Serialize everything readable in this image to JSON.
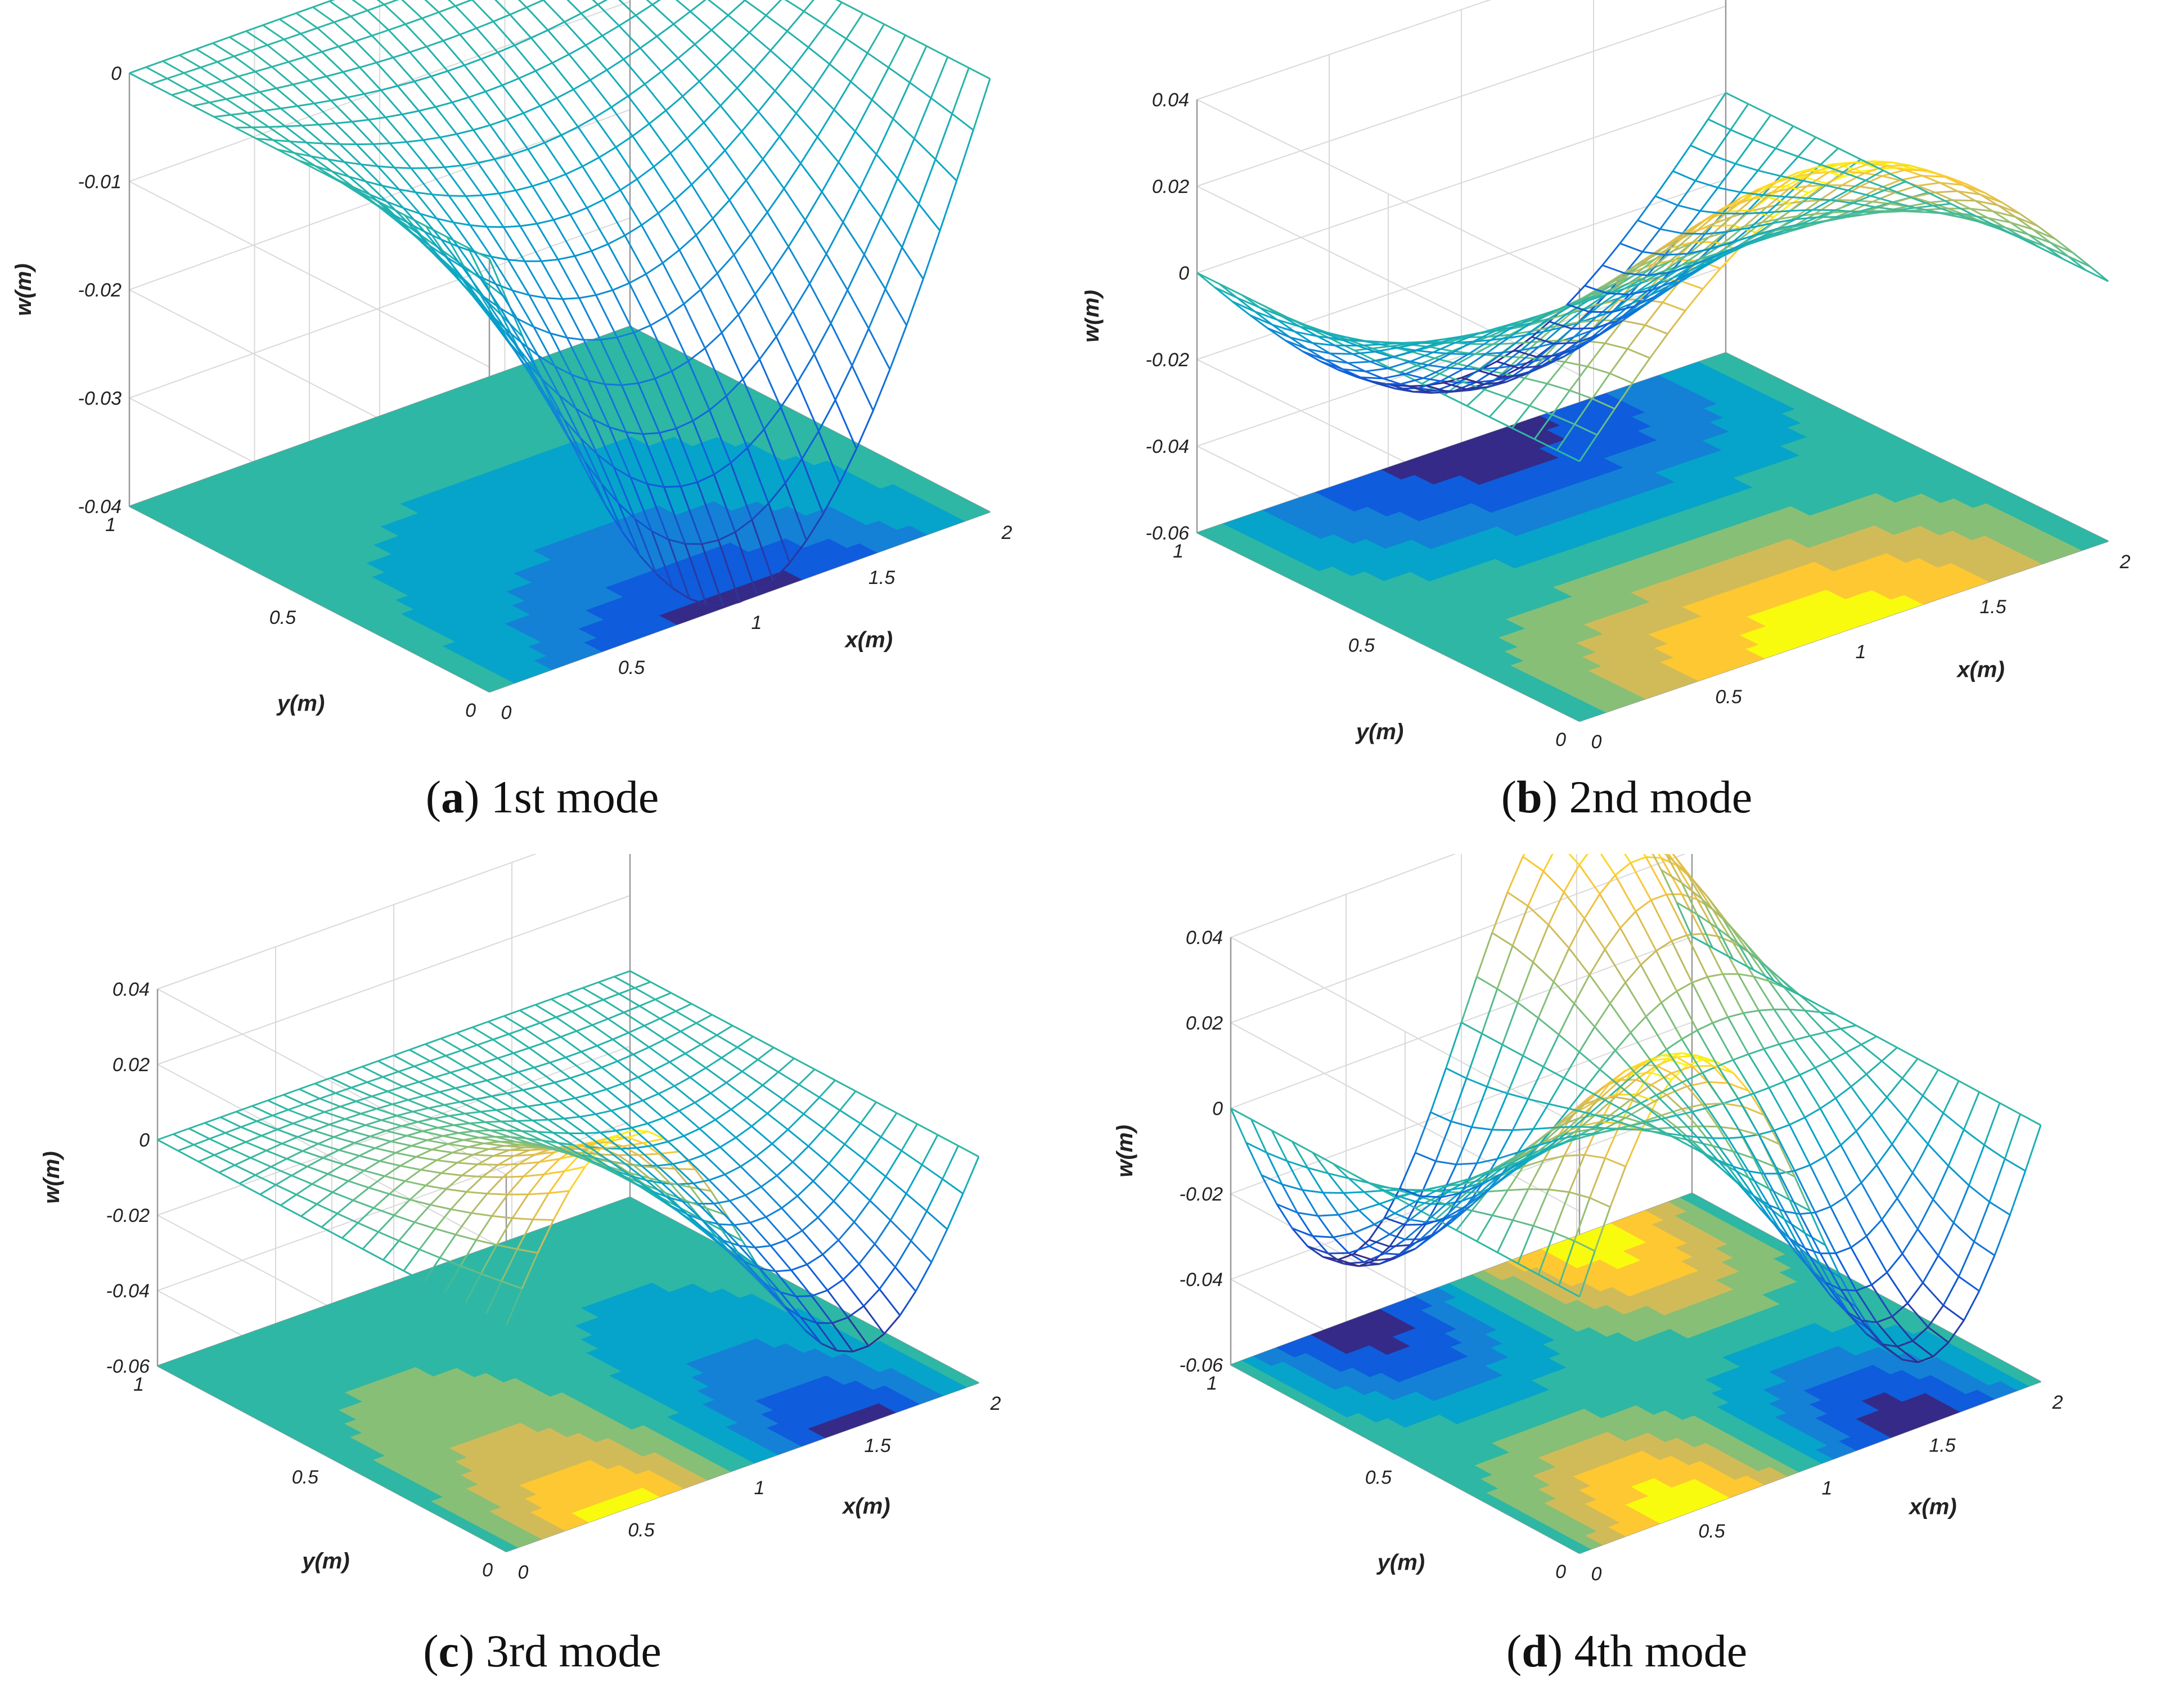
{
  "chart_data": [
    {
      "type": "surface",
      "panel_letter": "a",
      "caption": "1st mode",
      "xlabel": "x(m)",
      "ylabel": "y(m)",
      "zlabel": "w(m)",
      "xlim": [
        0,
        2
      ],
      "ylim": [
        0,
        1
      ],
      "zlim": [
        -0.04,
        0
      ],
      "xticks": [
        "0",
        "0.5",
        "1",
        "1.5",
        "2"
      ],
      "yticks": [
        "0",
        "0.5",
        "1"
      ],
      "zticks": [
        "-0.04",
        "-0.03",
        "-0.02",
        "-0.01",
        "0"
      ],
      "mode": {
        "peak_w": -0.04,
        "x_half_waves": 1,
        "y_shape": "clamped-free"
      },
      "contour_projection": true,
      "grid": true
    },
    {
      "type": "surface",
      "panel_letter": "b",
      "caption": "2nd mode",
      "xlabel": "x(m)",
      "ylabel": "y(m)",
      "zlabel": "w(m)",
      "xlim": [
        0,
        2
      ],
      "ylim": [
        0,
        1
      ],
      "zlim": [
        -0.06,
        0.04
      ],
      "xticks": [
        "0",
        "0.5",
        "1",
        "1.5",
        "2"
      ],
      "yticks": [
        "0",
        "0.5",
        "1"
      ],
      "zticks": [
        "-0.06",
        "-0.04",
        "-0.02",
        "0",
        "0.02",
        "0.04"
      ],
      "mode": {
        "peak_w": 0.045,
        "x_half_waves": 1,
        "y_shape": "antisymmetric"
      },
      "contour_projection": true,
      "grid": true
    },
    {
      "type": "surface",
      "panel_letter": "c",
      "caption": "3rd mode",
      "xlabel": "x(m)",
      "ylabel": "y(m)",
      "zlabel": "w(m)",
      "xlim": [
        0,
        2
      ],
      "ylim": [
        0,
        1
      ],
      "zlim": [
        -0.06,
        0.04
      ],
      "xticks": [
        "0",
        "0.5",
        "1",
        "1.5",
        "2"
      ],
      "yticks": [
        "0",
        "0.5",
        "1"
      ],
      "zticks": [
        "-0.06",
        "-0.04",
        "-0.02",
        "0",
        "0.02",
        "0.04"
      ],
      "mode": {
        "peak_w": 0.04,
        "x_half_waves": 2,
        "y_shape": "clamped-free"
      },
      "contour_projection": true,
      "grid": true
    },
    {
      "type": "surface",
      "panel_letter": "d",
      "caption": "4th mode",
      "xlabel": "x(m)",
      "ylabel": "y(m)",
      "zlabel": "w(m)",
      "xlim": [
        0,
        2
      ],
      "ylim": [
        0,
        1
      ],
      "zlim": [
        -0.06,
        0.04
      ],
      "xticks": [
        "0",
        "0.5",
        "1",
        "1.5",
        "2"
      ],
      "yticks": [
        "0",
        "0.5",
        "1"
      ],
      "zticks": [
        "-0.06",
        "-0.04",
        "-0.02",
        "0",
        "0.02",
        "0.04"
      ],
      "mode": {
        "peak_w": 0.045,
        "x_half_waves": 2,
        "y_shape": "antisymmetric"
      },
      "contour_projection": true,
      "grid": true
    }
  ],
  "colors": {
    "parula": [
      "#352a87",
      "#0f5cdd",
      "#1481d6",
      "#06a4ca",
      "#2eb7a4",
      "#87bf77",
      "#d1bb59",
      "#fec832",
      "#f9fb0e"
    ],
    "grid": "#d9d9d9",
    "axis": "#999999",
    "text": "#222222"
  }
}
